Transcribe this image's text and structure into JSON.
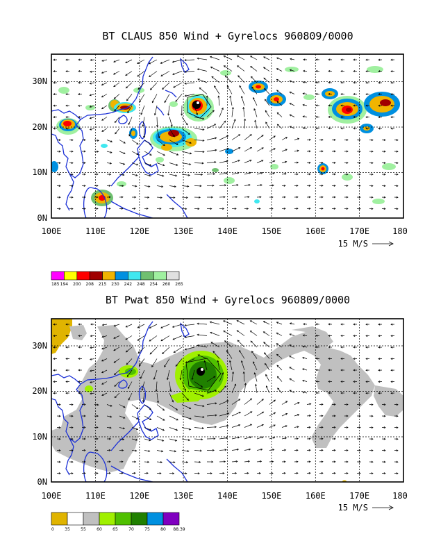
{
  "panels": [
    {
      "id": "claus",
      "title": "BT CLAUS 850 Wind + Gyrelocs 960809/0000",
      "lon_labels": [
        "100E",
        "110E",
        "120E",
        "130E",
        "140E",
        "150E",
        "160E",
        "170E",
        "180"
      ],
      "lat_labels": [
        "30N",
        "20N",
        "10N",
        "0N"
      ],
      "lat_values": [
        30,
        20,
        10,
        0
      ],
      "lon_range": [
        100,
        180
      ],
      "lat_range": [
        0,
        36
      ],
      "ref_vector_label": "15 M/S",
      "colorbar": {
        "colors": [
          "#ff00ff",
          "#ffff00",
          "#ff0000",
          "#a00000",
          "#f0b400",
          "#0090e0",
          "#40e8f0",
          "#70c070",
          "#a0f0a0",
          "#e0e0e0"
        ],
        "labels": [
          "185",
          "194",
          "200",
          "208",
          "215",
          "230",
          "242",
          "248",
          "254",
          "260",
          "265"
        ]
      }
    },
    {
      "id": "pwat",
      "title": "BT Pwat 850 Wind + Gyrelocs 960809/0000",
      "lon_labels": [
        "100E",
        "110E",
        "120E",
        "130E",
        "140E",
        "150E",
        "160E",
        "170E",
        "180"
      ],
      "lat_labels": [
        "30N",
        "20N",
        "10N",
        "0N"
      ],
      "lat_values": [
        30,
        20,
        10,
        0
      ],
      "lon_range": [
        100,
        180
      ],
      "lat_range": [
        0,
        36
      ],
      "ref_vector_label": "15 M/S",
      "colorbar": {
        "colors": [
          "#e0b400",
          "#ffffff",
          "#c0c0c0",
          "#a0f000",
          "#50c000",
          "#208000",
          "#0090e0",
          "#8000c0"
        ],
        "labels": [
          "0",
          "35",
          "55",
          "60",
          "65",
          "70",
          "75",
          "80",
          "88.39"
        ]
      }
    }
  ],
  "colors": {
    "coastline": "#1a2fd6",
    "gyre_marker": "#000000"
  }
}
